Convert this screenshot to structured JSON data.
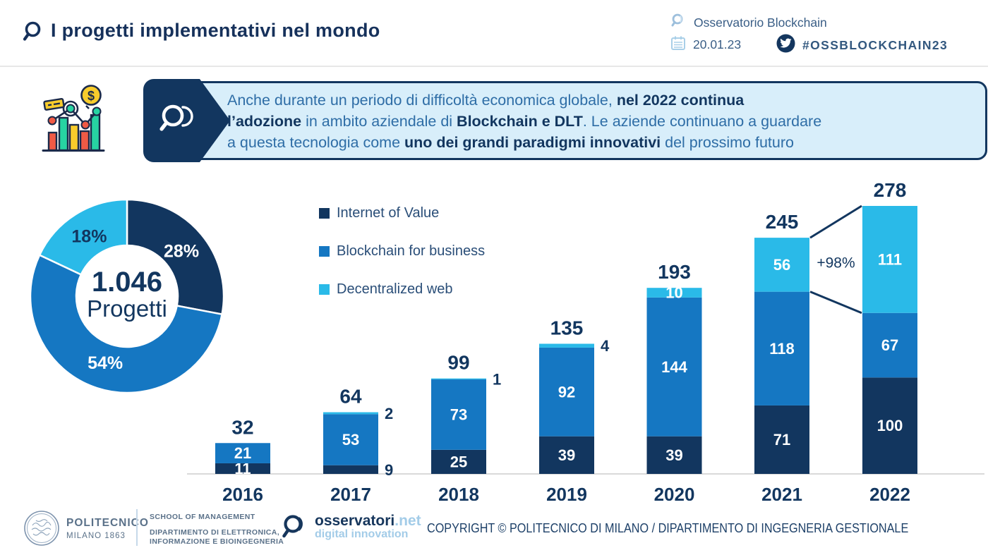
{
  "colors": {
    "navy": "#12365F",
    "blue": "#1577C2",
    "cyan": "#2ABAE8",
    "callout_bg": "#D8EEFA",
    "light_blue_accent": "#A3CCE8",
    "axis_gray": "#DADADA"
  },
  "header": {
    "title": "I progetti implementativi nel mondo",
    "brand": "Osservatorio Blockchain",
    "date": "20.01.23",
    "hashtag": "#OSSBLOCKCHAIN23"
  },
  "callout": {
    "lines": [
      [
        {
          "t": "Anche durante un periodo di difficoltà economica globale, ",
          "b": 0
        },
        {
          "t": "nel 2022 continua",
          "b": 1
        }
      ],
      [
        {
          "t": "l’adozione",
          "b": 1
        },
        {
          "t": " in ambito aziendale di ",
          "b": 0
        },
        {
          "t": "Blockchain e DLT",
          "b": 1
        },
        {
          "t": ". Le aziende continuano a guardare",
          "b": 0
        }
      ],
      [
        {
          "t": "a questa tecnologia come ",
          "b": 0
        },
        {
          "t": "uno dei grandi paradigmi innovativi",
          "b": 1
        },
        {
          "t": " del prossimo futuro",
          "b": 0
        }
      ]
    ]
  },
  "chart_data": [
    {
      "type": "pie",
      "subtype": "donut",
      "center_value": "1.046",
      "center_label": "Progetti",
      "start_angle_deg": 0,
      "direction": "clockwise",
      "slices": [
        {
          "name": "Internet of Value",
          "pct": 28,
          "color": "#12365F",
          "label": "28%",
          "label_color": "#FFFFFF"
        },
        {
          "name": "Blockchain for business",
          "pct": 54,
          "color": "#1577C2",
          "label": "54%",
          "label_color": "#FFFFFF"
        },
        {
          "name": "Decentralized web",
          "pct": 18,
          "color": "#2ABAE8",
          "label": "18%",
          "label_color": "#12365F"
        }
      ]
    },
    {
      "type": "bar",
      "stacked": true,
      "categories": [
        "2016",
        "2017",
        "2018",
        "2019",
        "2020",
        "2021",
        "2022"
      ],
      "series": [
        {
          "name": "Internet of Value",
          "color": "#12365F",
          "values": [
            11,
            9,
            25,
            39,
            39,
            71,
            100
          ]
        },
        {
          "name": "Blockchain for business",
          "color": "#1577C2",
          "values": [
            21,
            53,
            73,
            92,
            144,
            118,
            67
          ]
        },
        {
          "name": "Decentralized web",
          "color": "#2ABAE8",
          "values": [
            0,
            2,
            1,
            4,
            10,
            56,
            111
          ]
        }
      ],
      "totals": [
        32,
        64,
        99,
        135,
        193,
        245,
        278
      ],
      "annotation": {
        "text": "+98%",
        "from_category": "2021",
        "to_category": "2022",
        "series": "Decentralized web"
      },
      "legend_position": "upper-left",
      "ylim": [
        0,
        278
      ],
      "grid": false
    }
  ],
  "footer": {
    "politecnico_line1": "POLITECNICO",
    "politecnico_line2": "MILANO 1863",
    "school_line1": "SCHOOL OF MANAGEMENT",
    "dept_line1": "DIPARTIMENTO DI ELETTRONICA,",
    "dept_line2": "INFORMAZIONE E BIOINGEGNERIA",
    "oss_name": "osservatori",
    "oss_net": ".net",
    "oss_tagline": "digital innovation",
    "copyright": "COPYRIGHT © POLITECNICO DI MILANO / DIPARTIMENTO DI INGEGNERIA GESTIONALE"
  }
}
